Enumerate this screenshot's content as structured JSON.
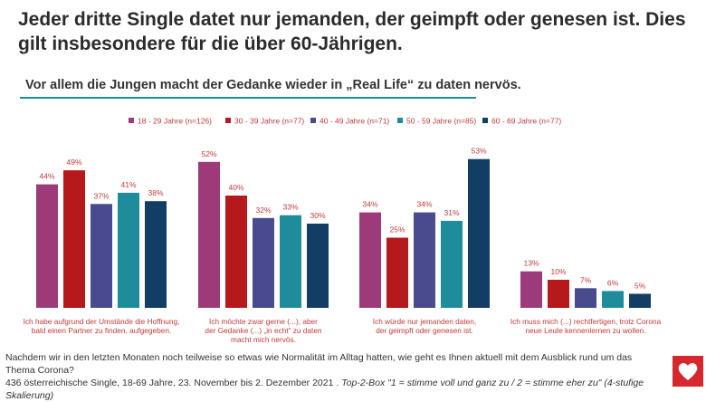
{
  "title": "Jeder dritte Single datet nur jemanden, der geimpft oder genesen ist. Dies gilt insbesondere für die über 60-Jährigen.",
  "subtitle": "Vor allem die Jungen macht der Gedanke wieder in „Real Life“ zu daten nervös.",
  "chart_data": {
    "type": "bar",
    "ylim": [
      0,
      60
    ],
    "categories": [
      [
        "Ich habe aufgrund der Umstände die Hoffnung,",
        "bald einen Partner zu finden, aufgegeben."
      ],
      [
        "Ich möchte zwar gerne (...), aber",
        "der Gedanke (...) „in echt“ zu daten",
        "macht mich nervös."
      ],
      [
        "Ich würde nur jemanden daten,",
        "der geimpft oder genesen ist."
      ],
      [
        "Ich muss mich (...) rechtfertigen, trotz Corona",
        "neue Leute kennenlernen zu wollen."
      ]
    ],
    "series": [
      {
        "name": "18 - 29 Jahre (n=126)",
        "color": "#9c3a7a",
        "values": [
          44,
          52,
          34,
          13
        ]
      },
      {
        "name": "30 - 39 Jahre (n=77)",
        "color": "#b5191b",
        "values": [
          49,
          40,
          25,
          10
        ]
      },
      {
        "name": "40 - 49 Jahre (n=71)",
        "color": "#4a4a8f",
        "values": [
          37,
          32,
          34,
          7
        ]
      },
      {
        "name": "50 - 59 Jahre (n=85)",
        "color": "#1e8c9a",
        "values": [
          41,
          33,
          31,
          6
        ]
      },
      {
        "name": "60 - 69 Jahre (n=77)",
        "color": "#123e66",
        "values": [
          38,
          30,
          53,
          5
        ]
      }
    ],
    "value_suffix": "%"
  },
  "footer": {
    "line1": "Nachdem wir in den letzten Monaten noch teilweise so etwas wie Normalität im Alltag hatten, wie geht es Ihnen aktuell mit dem Ausblick rund um das Thema Corona?",
    "line2_plain": "436 österreichische Single, 18-69 Jahre, 23. November bis 2. Dezember 2021 . ",
    "line2_italic": "Top-2-Box \"1 = stimme voll und ganz zu / 2 = stimme eher zu\" (4-stufige Skalierung)"
  },
  "logo": {
    "icon": "heart-icon",
    "color": "#d6262e"
  }
}
